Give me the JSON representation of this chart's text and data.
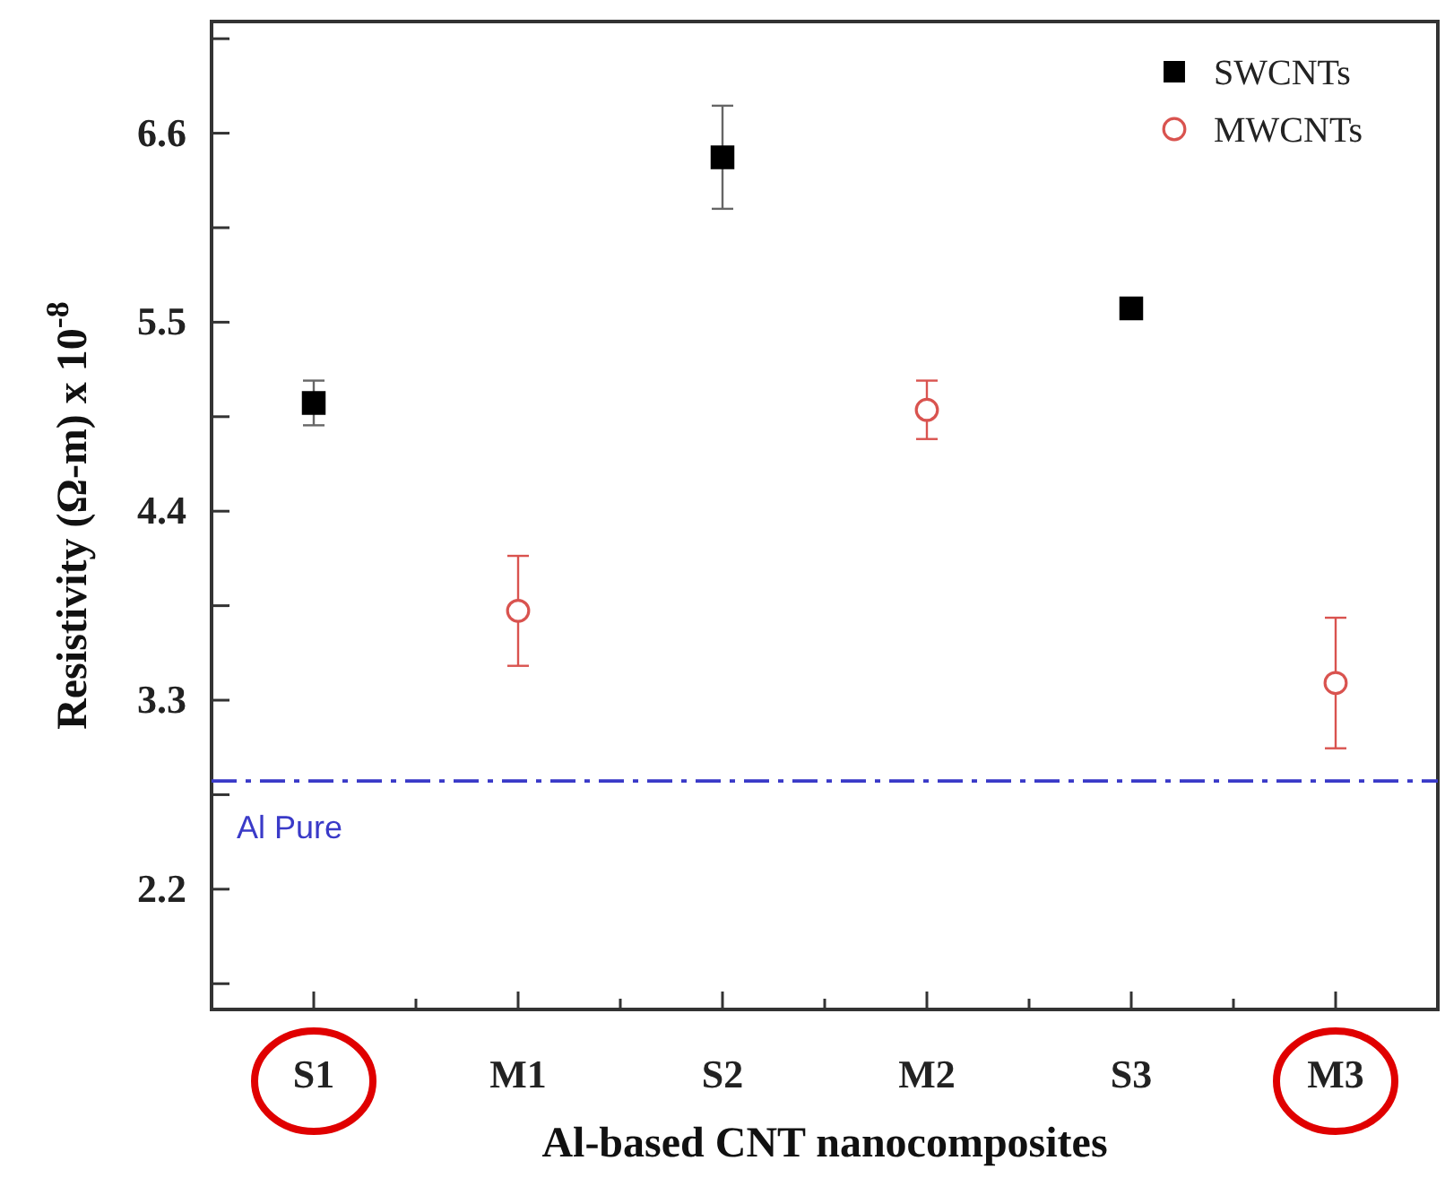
{
  "chart_data": {
    "type": "scatter",
    "xlabel": "Al-based CNT nanocomposites",
    "ylabel": "Resistivity (Ω-m) x 10$^{-8}$",
    "categories": [
      "S1",
      "M1",
      "S2",
      "M2",
      "S3",
      "M3"
    ],
    "series": [
      {
        "name": "SWCNTs",
        "color": "#000000",
        "marker": "square",
        "values": [
          5.03,
          null,
          6.46,
          null,
          5.58,
          null
        ],
        "errors": [
          0.13,
          null,
          0.3,
          null,
          null,
          null
        ]
      },
      {
        "name": "MWCNTs",
        "color": "#d9534f",
        "marker": "circle",
        "values": [
          null,
          3.82,
          null,
          4.99,
          null,
          3.4
        ],
        "errors": [
          null,
          0.32,
          null,
          0.17,
          null,
          0.38
        ]
      }
    ],
    "ylim": [
      1.5,
      7.25
    ],
    "yticks": [
      {
        "value": 1.65,
        "label": null
      },
      2.2,
      {
        "value": 2.75,
        "label": null
      },
      3.3,
      {
        "value": 3.85,
        "label": null
      },
      4.4,
      {
        "value": 4.95,
        "label": null
      },
      5.5,
      {
        "value": 6.05,
        "label": null
      },
      6.6,
      {
        "value": 7.15,
        "label": null
      }
    ],
    "ref_lines": [
      {
        "axis": "y",
        "value": 2.83,
        "label": "Al Pure",
        "color": "#3a3ac8",
        "line_style": "dashed"
      }
    ],
    "legend": "top right",
    "grid": false
  }
}
